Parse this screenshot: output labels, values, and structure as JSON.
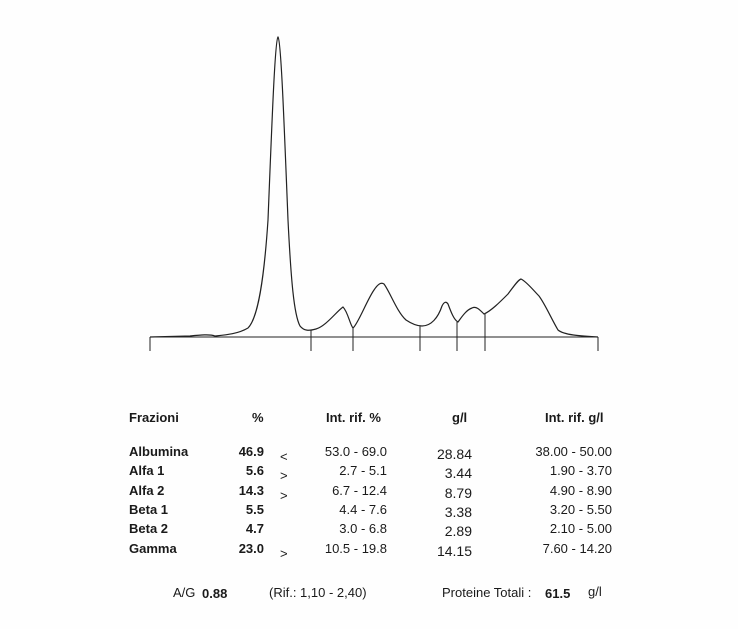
{
  "table": {
    "headers": {
      "fraction": "Frazioni",
      "percent": "%",
      "ref_percent": "Int. rif. %",
      "gl": "g/l",
      "ref_gl": "Int. rif. g/l"
    },
    "rows": [
      {
        "name": "Albumina",
        "percent": "46.9",
        "flag": "<",
        "ref_percent": "53.0 - 69.0",
        "gl": "28.84",
        "ref_gl": "38.00 - 50.00"
      },
      {
        "name": "Alfa 1",
        "percent": "5.6",
        "flag": ">",
        "ref_percent": "2.7 -  5.1",
        "gl": "3.44",
        "ref_gl": "1.90 - 3.70"
      },
      {
        "name": "Alfa 2",
        "percent": "14.3",
        "flag": ">",
        "ref_percent": "6.7 - 12.4",
        "gl": "8.79",
        "ref_gl": "4.90 - 8.90"
      },
      {
        "name": "Beta 1",
        "percent": "5.5",
        "flag": "",
        "ref_percent": "4.4 -  7.6",
        "gl": "3.38",
        "ref_gl": "3.20 - 5.50"
      },
      {
        "name": "Beta 2",
        "percent": "4.7",
        "flag": "",
        "ref_percent": "3.0 -  6.8",
        "gl": "2.89",
        "ref_gl": "2.10 - 5.00"
      },
      {
        "name": "Gamma",
        "percent": "23.0",
        "flag": ">",
        "ref_percent": "10.5 - 19.8",
        "gl": "14.15",
        "ref_gl": "7.60 - 14.20"
      }
    ]
  },
  "footer": {
    "ag_label": "A/G",
    "ag_value": "0.88",
    "ag_ref": "(Rif.: 1,10 - 2,40)",
    "total_label": "Proteine Totali :",
    "total_value": "61.5",
    "total_unit": "g/l"
  },
  "colors": {
    "trace": "#222222",
    "text": "#1a1a1a"
  }
}
